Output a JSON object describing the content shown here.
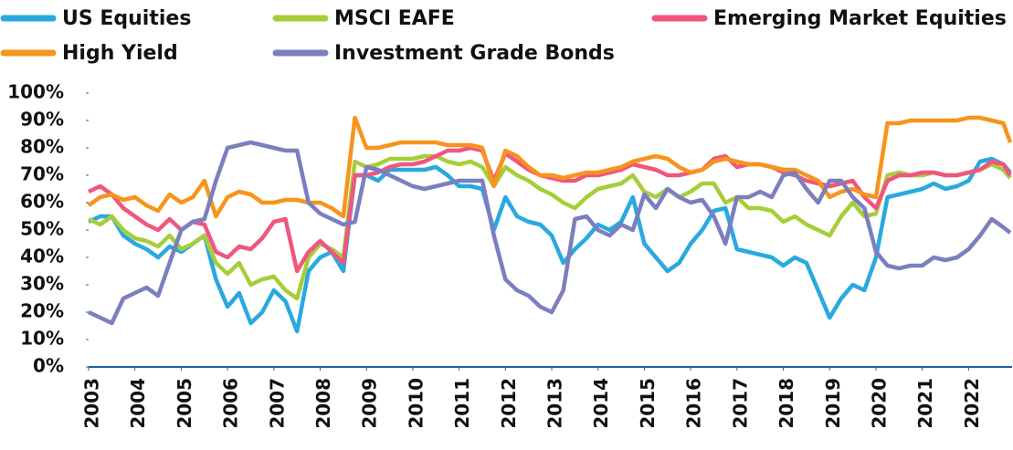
{
  "chart_data": {
    "type": "line",
    "x": [
      2003,
      2003.25,
      2003.5,
      2003.75,
      2004,
      2004.25,
      2004.5,
      2004.75,
      2005,
      2005.25,
      2005.5,
      2005.75,
      2006,
      2006.25,
      2006.5,
      2006.75,
      2007,
      2007.25,
      2007.5,
      2007.75,
      2008,
      2008.25,
      2008.5,
      2008.75,
      2009,
      2009.25,
      2009.5,
      2009.75,
      2010,
      2010.25,
      2010.5,
      2010.75,
      2011,
      2011.25,
      2011.5,
      2011.75,
      2012,
      2012.25,
      2012.5,
      2012.75,
      2013,
      2013.25,
      2013.5,
      2013.75,
      2014,
      2014.25,
      2014.5,
      2014.75,
      2015,
      2015.25,
      2015.5,
      2015.75,
      2016,
      2016.25,
      2016.5,
      2016.75,
      2017,
      2017.25,
      2017.5,
      2017.75,
      2018,
      2018.25,
      2018.5,
      2018.75,
      2019,
      2019.25,
      2019.5,
      2019.75,
      2020,
      2020.25,
      2020.5,
      2020.75,
      2021,
      2021.25,
      2021.5,
      2021.75,
      2022,
      2022.25,
      2022.5,
      2022.75,
      2022.9
    ],
    "series": [
      {
        "name": "US Equities",
        "color": "#29a9e0",
        "values": [
          53,
          55,
          55,
          48,
          45,
          43,
          40,
          44,
          42,
          45,
          48,
          32,
          22,
          27,
          16,
          20,
          28,
          24,
          13,
          35,
          40,
          42,
          35,
          70,
          70,
          68,
          72,
          72,
          72,
          72,
          73,
          70,
          66,
          66,
          65,
          50,
          62,
          55,
          53,
          52,
          48,
          38,
          43,
          47,
          52,
          50,
          53,
          62,
          45,
          40,
          35,
          38,
          45,
          50,
          57,
          58,
          43,
          42,
          41,
          40,
          37,
          40,
          38,
          28,
          18,
          25,
          30,
          28,
          40,
          62,
          63,
          64,
          65,
          67,
          65,
          66,
          68,
          75,
          76,
          74,
          71
        ]
      },
      {
        "name": "MSCI EAFE",
        "color": "#a6ce39",
        "values": [
          54,
          52,
          55,
          50,
          47,
          46,
          44,
          48,
          43,
          45,
          48,
          38,
          34,
          38,
          30,
          32,
          33,
          28,
          25,
          40,
          45,
          43,
          40,
          75,
          73,
          74,
          76,
          76,
          76,
          77,
          77,
          75,
          74,
          75,
          73,
          66,
          73,
          70,
          68,
          65,
          63,
          60,
          58,
          62,
          65,
          66,
          67,
          70,
          64,
          62,
          65,
          62,
          64,
          67,
          67,
          60,
          62,
          58,
          58,
          57,
          53,
          55,
          52,
          50,
          48,
          55,
          60,
          55,
          56,
          70,
          71,
          70,
          70,
          71,
          70,
          70,
          71,
          72,
          74,
          72,
          69
        ]
      },
      {
        "name": "Emerging Market Equities",
        "color": "#f0567e",
        "values": [
          64,
          66,
          63,
          58,
          55,
          52,
          50,
          54,
          50,
          53,
          52,
          42,
          40,
          44,
          43,
          47,
          53,
          54,
          35,
          42,
          46,
          42,
          38,
          70,
          70,
          71,
          73,
          74,
          74,
          75,
          77,
          79,
          79,
          80,
          79,
          68,
          78,
          75,
          72,
          70,
          69,
          68,
          68,
          70,
          70,
          71,
          72,
          74,
          73,
          72,
          70,
          70,
          71,
          72,
          76,
          77,
          73,
          74,
          74,
          73,
          71,
          70,
          68,
          67,
          66,
          67,
          68,
          62,
          58,
          68,
          70,
          70,
          71,
          71,
          70,
          70,
          71,
          72,
          75,
          74,
          70
        ]
      },
      {
        "name": "High Yield",
        "color": "#f7941d",
        "values": [
          59,
          62,
          63,
          61,
          62,
          59,
          57,
          63,
          60,
          62,
          68,
          55,
          62,
          64,
          63,
          60,
          60,
          61,
          61,
          60,
          60,
          58,
          55,
          91,
          80,
          80,
          81,
          82,
          82,
          82,
          82,
          81,
          81,
          81,
          80,
          66,
          79,
          77,
          73,
          70,
          70,
          69,
          70,
          71,
          71,
          72,
          73,
          75,
          76,
          77,
          76,
          73,
          71,
          72,
          75,
          76,
          75,
          74,
          74,
          73,
          72,
          72,
          70,
          68,
          62,
          64,
          65,
          63,
          62,
          89,
          89,
          90,
          90,
          90,
          90,
          90,
          91,
          91,
          90,
          89,
          82
        ]
      },
      {
        "name": "Investment Grade Bonds",
        "color": "#7b7fbf",
        "values": [
          20,
          18,
          16,
          25,
          27,
          29,
          26,
          38,
          50,
          53,
          54,
          68,
          80,
          81,
          82,
          81,
          80,
          79,
          79,
          60,
          56,
          54,
          52,
          53,
          73,
          72,
          70,
          68,
          66,
          65,
          66,
          67,
          68,
          68,
          68,
          48,
          32,
          28,
          26,
          22,
          20,
          28,
          54,
          55,
          50,
          48,
          52,
          50,
          63,
          58,
          65,
          62,
          60,
          61,
          55,
          45,
          62,
          62,
          64,
          62,
          70,
          71,
          65,
          60,
          68,
          68,
          62,
          58,
          42,
          37,
          36,
          37,
          37,
          40,
          39,
          40,
          43,
          48,
          54,
          51,
          49
        ]
      }
    ],
    "xlim": [
      2003,
      2022.9
    ],
    "xticks": [
      2003,
      2004,
      2005,
      2006,
      2007,
      2008,
      2009,
      2010,
      2011,
      2012,
      2013,
      2014,
      2015,
      2016,
      2017,
      2018,
      2019,
      2020,
      2021,
      2022
    ],
    "ylim": [
      0,
      100
    ],
    "yticks": [
      {
        "value": 0,
        "label": "0%"
      },
      {
        "value": 10,
        "label": "10%"
      },
      {
        "value": 20,
        "label": "20%"
      },
      {
        "value": 30,
        "label": "30%"
      },
      {
        "value": 40,
        "label": "40%"
      },
      {
        "value": 50,
        "label": "50%"
      },
      {
        "value": 60,
        "label": "60%"
      },
      {
        "value": 70,
        "label": "70%"
      },
      {
        "value": 80,
        "label": "80%"
      },
      {
        "value": 90,
        "label": "90%"
      },
      {
        "value": 100,
        "label": "100%"
      }
    ],
    "grid": false
  }
}
